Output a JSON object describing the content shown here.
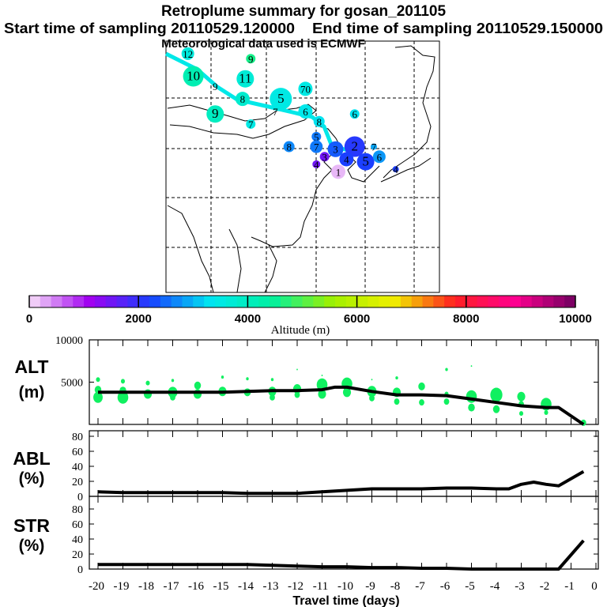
{
  "header": {
    "title": "Retroplume summary for gosan_201105",
    "start": "Start time of sampling 20110529.120000",
    "end": "End time of sampling 20110529.150000",
    "met": "Meteorological data used is ECMWF"
  },
  "map": {
    "labels": [
      {
        "t": "12",
        "lon": 0.08,
        "lat": 0.05,
        "alt": 3600,
        "r": 8
      },
      {
        "t": "9",
        "lon": 0.31,
        "lat": 0.07,
        "alt": 4600,
        "r": 6
      },
      {
        "t": "10",
        "lon": 0.1,
        "lat": 0.14,
        "alt": 4200,
        "r": 13
      },
      {
        "t": "11",
        "lon": 0.29,
        "lat": 0.15,
        "alt": 3700,
        "r": 11
      },
      {
        "t": "9",
        "lon": 0.18,
        "lat": 0.18,
        "alt": 4000,
        "r": 0
      },
      {
        "t": "8",
        "lon": 0.28,
        "lat": 0.23,
        "alt": 3800,
        "r": 9
      },
      {
        "t": "5",
        "lon": 0.42,
        "lat": 0.23,
        "alt": 3500,
        "r": 14
      },
      {
        "t": "70",
        "lon": 0.51,
        "lat": 0.19,
        "alt": 3500,
        "r": 9
      },
      {
        "t": "7",
        "lon": 0.4,
        "lat": 0.28,
        "alt": 3500,
        "r": 0
      },
      {
        "t": "9",
        "lon": 0.18,
        "lat": 0.29,
        "alt": 4000,
        "r": 11
      },
      {
        "t": "7",
        "lon": 0.31,
        "lat": 0.33,
        "alt": 3500,
        "r": 6
      },
      {
        "t": "6",
        "lon": 0.51,
        "lat": 0.28,
        "alt": 3400,
        "r": 9
      },
      {
        "t": "8",
        "lon": 0.56,
        "lat": 0.32,
        "alt": 3300,
        "r": 7
      },
      {
        "t": "6",
        "lon": 0.69,
        "lat": 0.29,
        "alt": 3300,
        "r": 6
      },
      {
        "t": "5",
        "lon": 0.55,
        "lat": 0.38,
        "alt": 2600,
        "r": 6
      },
      {
        "t": "8",
        "lon": 0.45,
        "lat": 0.42,
        "alt": 2700,
        "r": 7
      },
      {
        "t": "7",
        "lon": 0.55,
        "lat": 0.42,
        "alt": 2600,
        "r": 8
      },
      {
        "t": "3",
        "lon": 0.62,
        "lat": 0.43,
        "alt": 2400,
        "r": 10
      },
      {
        "t": "2",
        "lon": 0.69,
        "lat": 0.42,
        "alt": 2100,
        "r": 13
      },
      {
        "t": "3",
        "lon": 0.58,
        "lat": 0.46,
        "alt": 1500,
        "r": 6
      },
      {
        "t": "4",
        "lon": 0.55,
        "lat": 0.49,
        "alt": 1500,
        "r": 5
      },
      {
        "t": "4",
        "lon": 0.66,
        "lat": 0.47,
        "alt": 2200,
        "r": 9
      },
      {
        "t": "1",
        "lon": 0.63,
        "lat": 0.52,
        "alt": 200,
        "r": 9
      },
      {
        "t": "5",
        "lon": 0.73,
        "lat": 0.48,
        "alt": 2200,
        "r": 11
      },
      {
        "t": "7",
        "lon": 0.76,
        "lat": 0.42,
        "alt": 2900,
        "r": 4
      },
      {
        "t": "6",
        "lon": 0.78,
        "lat": 0.46,
        "alt": 2800,
        "r": 8
      },
      {
        "t": "4",
        "lon": 0.84,
        "lat": 0.51,
        "alt": 2200,
        "r": 4
      }
    ]
  },
  "colorbar": {
    "ticks": [
      "0",
      "2000",
      "4000",
      "6000",
      "8000",
      "10000"
    ],
    "label": "Altitude (m)",
    "colors": [
      "#f8e0f8",
      "#a000f0",
      "#1840ff",
      "#00e8f0",
      "#00f0a0",
      "#a0f000",
      "#f0f000",
      "#ff2020",
      "#ff0090",
      "#700060"
    ]
  },
  "chart_data": [
    {
      "type": "line",
      "name": "ALT",
      "ylabel": "ALT",
      "yunit": "(m)",
      "ylim": [
        0,
        10000
      ],
      "yticks": [
        "10000",
        "5000"
      ],
      "x": [
        -20,
        -19,
        -18,
        -17,
        -16,
        -15,
        -14,
        -13,
        -12,
        -11,
        -10.5,
        -10,
        -9,
        -8,
        -7,
        -6,
        -5,
        -4,
        -3,
        -2,
        -1.5,
        -0.5
      ],
      "y": [
        3800,
        3800,
        3800,
        3800,
        3800,
        3800,
        3900,
        4000,
        4000,
        4100,
        4400,
        4400,
        3900,
        3500,
        3500,
        3400,
        3000,
        2600,
        2200,
        2000,
        2000,
        0
      ],
      "bubbles": [
        [
          -20,
          3200,
          7
        ],
        [
          -20,
          4100,
          5
        ],
        [
          -20,
          5300,
          3
        ],
        [
          -19,
          3200,
          8
        ],
        [
          -19,
          4000,
          5
        ],
        [
          -19,
          5100,
          3
        ],
        [
          -18,
          3600,
          6
        ],
        [
          -18,
          4900,
          3
        ],
        [
          -17,
          3800,
          7
        ],
        [
          -17,
          3200,
          4
        ],
        [
          -17,
          5200,
          2
        ],
        [
          -16,
          3600,
          6
        ],
        [
          -16,
          4600,
          5
        ],
        [
          -15,
          3900,
          6
        ],
        [
          -15,
          5600,
          2
        ],
        [
          -14,
          3800,
          5
        ],
        [
          -14,
          5400,
          2
        ],
        [
          -13,
          3900,
          6
        ],
        [
          -13,
          3200,
          4
        ],
        [
          -13,
          5300,
          2
        ],
        [
          -12,
          4200,
          6
        ],
        [
          -12,
          3500,
          4
        ],
        [
          -12,
          6500,
          1
        ],
        [
          -11,
          4700,
          8
        ],
        [
          -11,
          3600,
          6
        ],
        [
          -11,
          5800,
          1
        ],
        [
          -10,
          4800,
          8
        ],
        [
          -10,
          3800,
          6
        ],
        [
          -9,
          3900,
          7
        ],
        [
          -9,
          3100,
          4
        ],
        [
          -9,
          5300,
          1
        ],
        [
          -8,
          3800,
          6
        ],
        [
          -8,
          2700,
          4
        ],
        [
          -8,
          5500,
          2
        ],
        [
          -7,
          4500,
          5
        ],
        [
          -7,
          2600,
          4
        ],
        [
          -6,
          2700,
          4
        ],
        [
          -6,
          3600,
          3
        ],
        [
          -6,
          6500,
          2
        ],
        [
          -5,
          3300,
          8
        ],
        [
          -5,
          2000,
          5
        ],
        [
          -5,
          6900,
          1
        ],
        [
          -4,
          3500,
          9
        ],
        [
          -4,
          1800,
          5
        ],
        [
          -3,
          3300,
          6
        ],
        [
          -3,
          2400,
          4
        ],
        [
          -3,
          1300,
          3
        ],
        [
          -2,
          2400,
          8
        ],
        [
          -2,
          1400,
          3
        ],
        [
          -0.5,
          200,
          4
        ]
      ]
    },
    {
      "type": "line",
      "name": "ABL",
      "ylabel": "ABL",
      "yunit": "(%)",
      "ylim": [
        0,
        88
      ],
      "yticks": [
        "80",
        "60",
        "40",
        "20",
        "0"
      ],
      "x": [
        -20,
        -19,
        -18,
        -17,
        -16,
        -15,
        -14,
        -13,
        -12,
        -11,
        -10,
        -9,
        -8,
        -7,
        -6,
        -5,
        -4,
        -3.5,
        -3,
        -2.5,
        -2,
        -1.5,
        -0.5
      ],
      "y": [
        6,
        5,
        5,
        5,
        5,
        5,
        4,
        4,
        4,
        6,
        8,
        10,
        10,
        10,
        11,
        11,
        10,
        10,
        16,
        19,
        16,
        14,
        33
      ]
    },
    {
      "type": "line",
      "name": "STR",
      "ylabel": "STR",
      "yunit": "(%)",
      "ylim": [
        0,
        88
      ],
      "yticks": [
        "80",
        "60",
        "40",
        "20",
        "0"
      ],
      "x": [
        -20,
        -19,
        -18,
        -17,
        -16,
        -15,
        -14,
        -13,
        -12,
        -11,
        -10,
        -9,
        -8,
        -7,
        -6,
        -5,
        -4,
        -3,
        -2,
        -1.5,
        -0.5
      ],
      "y": [
        6,
        6,
        6,
        6,
        6,
        6,
        6,
        5,
        4,
        3,
        3,
        2,
        2,
        1,
        1,
        0,
        0,
        0,
        0,
        0,
        38
      ]
    }
  ],
  "xaxis": {
    "ticks": [
      "-20",
      "-19",
      "-18",
      "-17",
      "-16",
      "-15",
      "-14",
      "-13",
      "-12",
      "-11",
      "-10",
      "-9",
      "-8",
      "-7",
      "-6",
      "-5",
      "-4",
      "-3",
      "-2",
      "-1",
      "0"
    ],
    "label": "Travel time (days)"
  }
}
